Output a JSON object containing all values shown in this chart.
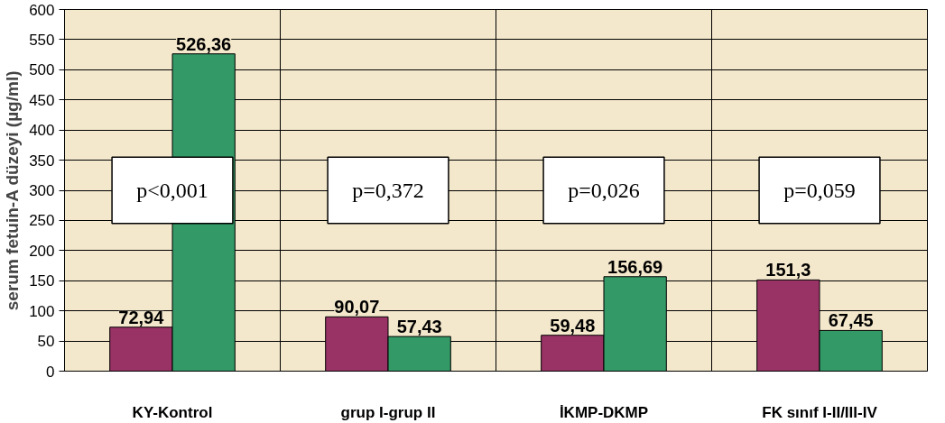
{
  "chart_data": {
    "type": "bar",
    "ylabel": "serum fetuin-A düzeyi (µg/ml)",
    "categories": [
      "KY-Kontrol",
      "grup I-grup II",
      "İKMP-DKMP",
      "FK sınıf I-II/III-IV"
    ],
    "series": [
      {
        "color": "#993366",
        "values": [
          72.94,
          90.07,
          59.48,
          151.3
        ],
        "value_labels": [
          "72,94",
          "90,07",
          "59,48",
          "151,3"
        ]
      },
      {
        "color": "#339966",
        "values": [
          526.36,
          57.43,
          156.69,
          67.45
        ],
        "value_labels": [
          "526,36",
          "57,43",
          "156,69",
          "67,45"
        ]
      }
    ],
    "ylim": [
      0,
      600
    ],
    "yticks": [
      0,
      50,
      100,
      150,
      200,
      250,
      300,
      350,
      400,
      450,
      500,
      550,
      600
    ],
    "grid": true,
    "data_labels": true,
    "annotations": [
      "p<0,001",
      "p=0,372",
      "p=0,026",
      "p=0,059"
    ]
  }
}
